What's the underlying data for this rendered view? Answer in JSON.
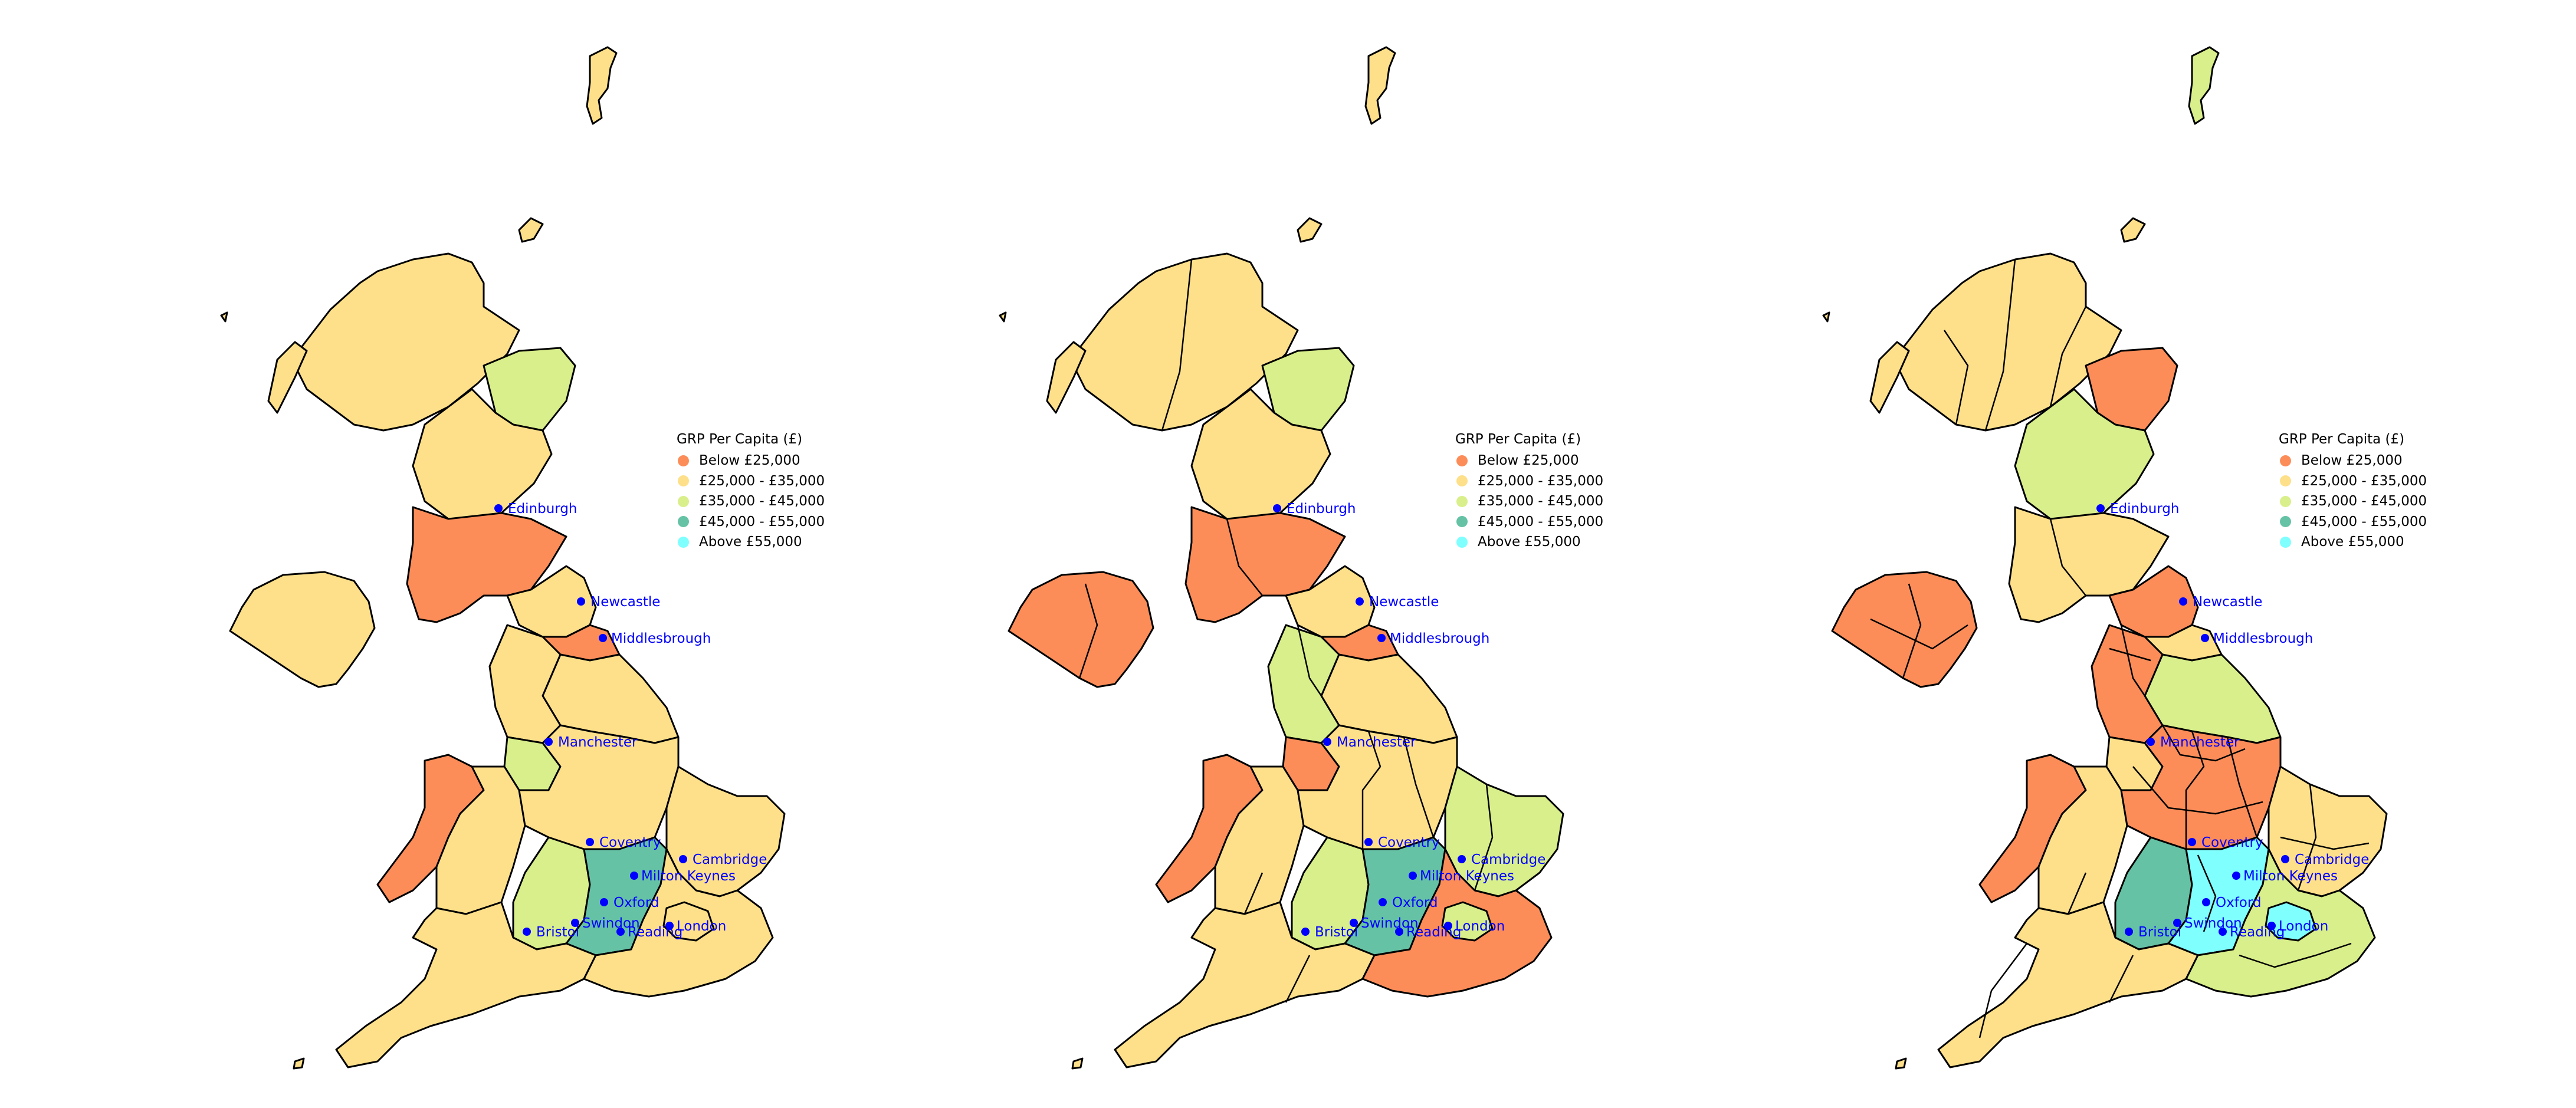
{
  "legend": {
    "title": "GRP Per Capita (£)",
    "items": [
      {
        "label": "Below £25,000",
        "color": "#fc8d59"
      },
      {
        "label": "£25,000 - £35,000",
        "color": "#fee08b"
      },
      {
        "label": "£35,000 - £45,000",
        "color": "#d9ef8b"
      },
      {
        "label": "£45,000 - £55,000",
        "color": "#66c2a5"
      },
      {
        "label": "Above £55,000",
        "color": "#80ffff"
      }
    ]
  },
  "cities": [
    {
      "name": "Edinburgh"
    },
    {
      "name": "Newcastle"
    },
    {
      "name": "Middlesbrough"
    },
    {
      "name": "Manchester"
    },
    {
      "name": "Coventry"
    },
    {
      "name": "Cambridge"
    },
    {
      "name": "Milton Keynes"
    },
    {
      "name": "Oxford"
    },
    {
      "name": "Swindon"
    },
    {
      "name": "Bristol"
    },
    {
      "name": "Reading"
    },
    {
      "name": "London"
    }
  ],
  "maps": [
    {
      "level": "coarse",
      "regions": {
        "shetland": "#fee08b",
        "north_scotland": "#fee08b",
        "aberdeen": "#d9ef8b",
        "central_scotland": "#fee08b",
        "south_scotland": "#fc8d59",
        "northern_ireland": "#fee08b",
        "north_england": "#fee08b",
        "tees": "#fc8d59",
        "yorkshire": "#fee08b",
        "north_west": "#fee08b",
        "cheshire": "#d9ef8b",
        "wales_west": "#fc8d59",
        "wales_east": "#fee08b",
        "midlands": "#fee08b",
        "east_anglia": "#fee08b",
        "oxfordshire": "#d9ef8b",
        "thames_valley": "#66c2a5",
        "south_west": "#fee08b",
        "south_east": "#fee08b",
        "london": "#fee08b"
      }
    },
    {
      "level": "medium",
      "regions": {
        "shetland": "#fee08b",
        "north_scotland": "#fee08b",
        "aberdeen": "#d9ef8b",
        "central_scotland": "#fee08b",
        "south_scotland": "#fc8d59",
        "northern_ireland": "#fc8d59",
        "north_england": "#fee08b",
        "tees": "#fc8d59",
        "yorkshire": "#fee08b",
        "north_west": "#d9ef8b",
        "cheshire": "#fc8d59",
        "wales_west": "#fc8d59",
        "wales_east": "#fee08b",
        "midlands": "#fee08b",
        "east_anglia": "#d9ef8b",
        "oxfordshire": "#d9ef8b",
        "thames_valley": "#66c2a5",
        "south_west": "#fee08b",
        "south_east": "#fc8d59",
        "london": "#d9ef8b"
      }
    },
    {
      "level": "fine",
      "regions": {
        "shetland": "#d9ef8b",
        "north_scotland": "#fee08b",
        "aberdeen": "#fc8d59",
        "central_scotland": "#d9ef8b",
        "south_scotland": "#fee08b",
        "northern_ireland": "#fc8d59",
        "north_england": "#fc8d59",
        "tees": "#fee08b",
        "yorkshire": "#d9ef8b",
        "north_west": "#fc8d59",
        "cheshire": "#fee08b",
        "wales_west": "#fc8d59",
        "wales_east": "#fee08b",
        "midlands": "#fc8d59",
        "east_anglia": "#fee08b",
        "oxfordshire": "#66c2a5",
        "thames_valley": "#80ffff",
        "south_west": "#fee08b",
        "south_east": "#d9ef8b",
        "london": "#80ffff"
      }
    }
  ]
}
